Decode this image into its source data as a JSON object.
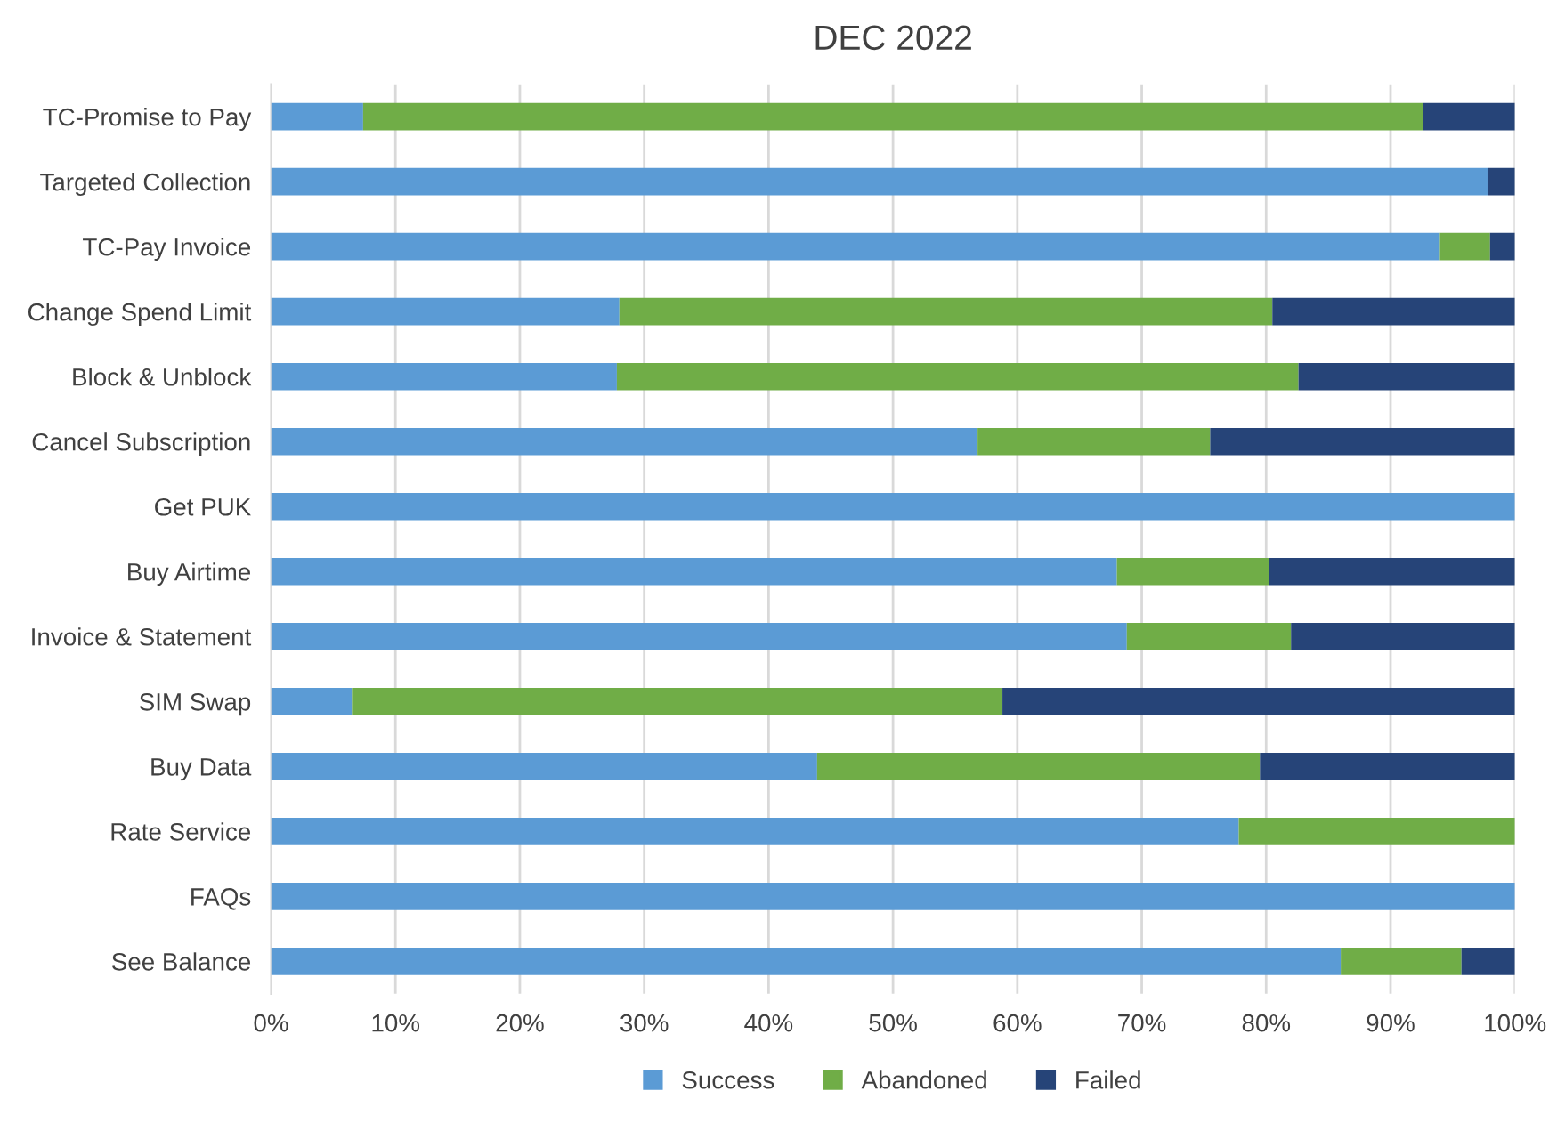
{
  "chart_data": {
    "type": "bar",
    "orientation": "horizontal",
    "stacked": true,
    "title": "DEC 2022",
    "categories": [
      "TC-Promise to Pay",
      "Targeted Collection",
      "TC-Pay Invoice",
      "Change Spend Limit",
      "Block & Unblock",
      "Cancel Subscription",
      "Get PUK",
      "Buy Airtime",
      "Invoice & Statement",
      "SIM Swap",
      "Buy Data",
      "Rate Service",
      "FAQs",
      "See Balance"
    ],
    "series": [
      {
        "name": "Success",
        "color": "#5b9bd5",
        "values": [
          7.4,
          97.8,
          93.9,
          28.0,
          27.8,
          56.8,
          100,
          68.0,
          68.8,
          6.5,
          43.9,
          77.8,
          100,
          86.0
        ]
      },
      {
        "name": "Abandoned",
        "color": "#70ad47",
        "values": [
          85.2,
          0,
          4.1,
          52.5,
          54.8,
          18.7,
          0,
          12.2,
          13.2,
          52.3,
          35.6,
          22.2,
          0,
          9.7
        ]
      },
      {
        "name": "Failed",
        "color": "#264478",
        "values": [
          7.4,
          2.2,
          2.0,
          19.5,
          17.4,
          24.5,
          0,
          19.8,
          18.0,
          41.2,
          20.5,
          0,
          0,
          4.3
        ]
      }
    ],
    "xlim": [
      0,
      100
    ],
    "xticks": [
      {
        "value": 0,
        "label": "0%"
      },
      {
        "value": 10,
        "label": "10%"
      },
      {
        "value": 20,
        "label": "20%"
      },
      {
        "value": 30,
        "label": "30%"
      },
      {
        "value": 40,
        "label": "40%"
      },
      {
        "value": 50,
        "label": "50%"
      },
      {
        "value": 60,
        "label": "60%"
      },
      {
        "value": 70,
        "label": "70%"
      },
      {
        "value": 80,
        "label": "80%"
      },
      {
        "value": 90,
        "label": "90%"
      },
      {
        "value": 100,
        "label": "100%"
      }
    ],
    "grid": "x",
    "legend": "bottom"
  }
}
